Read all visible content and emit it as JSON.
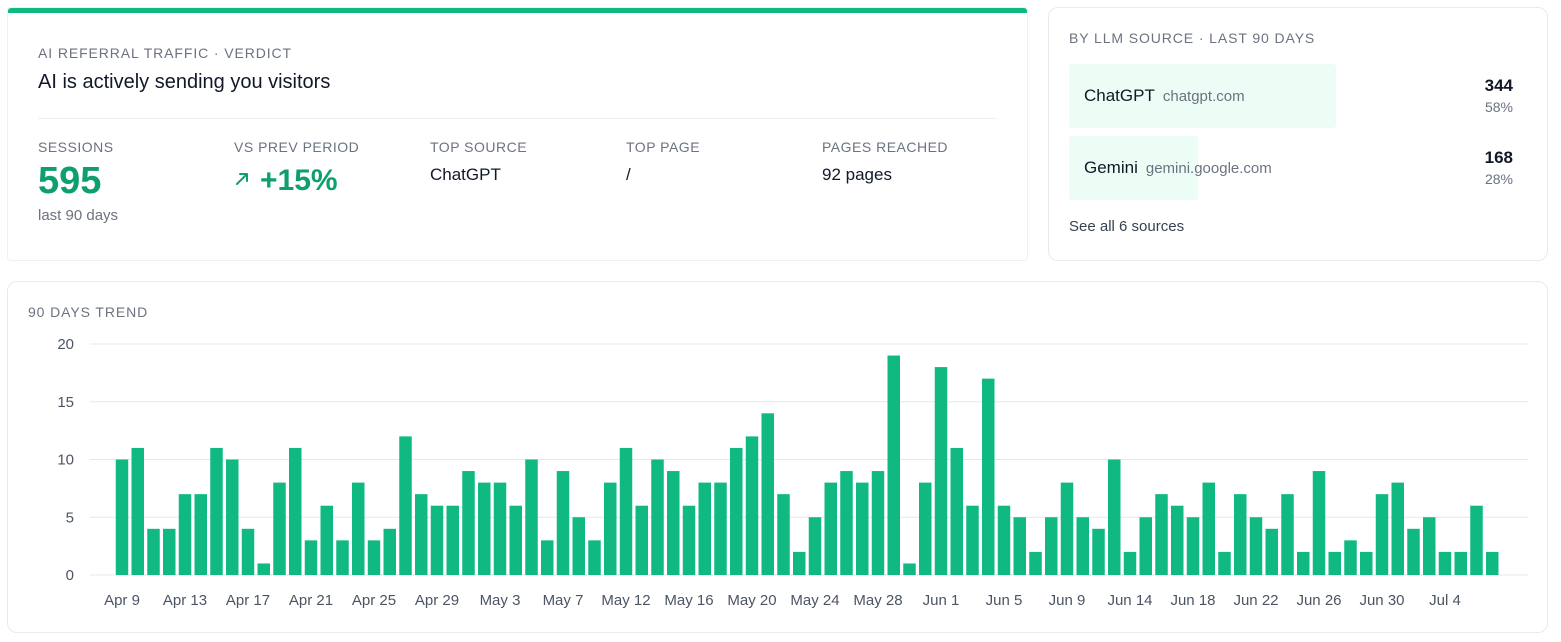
{
  "verdict": {
    "eyebrow": "AI REFERRAL TRAFFIC · VERDICT",
    "headline": "AI is actively sending you visitors",
    "accent_color": "#10b981",
    "stats": {
      "sessions": {
        "label": "SESSIONS",
        "value": "595",
        "sub": "last 90 days"
      },
      "vs_prev": {
        "label": "VS PREV PERIOD",
        "value": "+15%",
        "icon": "arrow-up-right-icon"
      },
      "top_source": {
        "label": "TOP SOURCE",
        "value": "ChatGPT"
      },
      "top_page": {
        "label": "TOP PAGE",
        "value": "/"
      },
      "pages_reached": {
        "label": "PAGES REACHED",
        "value": "92 pages"
      }
    }
  },
  "sources": {
    "eyebrow": "BY LLM SOURCE · LAST 90 DAYS",
    "items": [
      {
        "name": "ChatGPT",
        "domain": "chatgpt.com",
        "count": "344",
        "pct": "58%",
        "share": 0.58
      },
      {
        "name": "Gemini",
        "domain": "gemini.google.com",
        "count": "168",
        "pct": "28%",
        "share": 0.28
      }
    ],
    "see_all": "See all 6 sources",
    "fill_color": "#ecfdf5"
  },
  "trend": {
    "eyebrow": "90 DAYS TREND",
    "chart_data": {
      "type": "bar",
      "start_label": "Apr 9",
      "x_tick_labels": [
        "Apr 9",
        "Apr 13",
        "Apr 17",
        "Apr 21",
        "Apr 25",
        "Apr 29",
        "May 3",
        "May 7",
        "May 12",
        "May 16",
        "May 20",
        "May 24",
        "May 28",
        "Jun 1",
        "Jun 5",
        "Jun 9",
        "Jun 14",
        "Jun 18",
        "Jun 22",
        "Jun 26",
        "Jun 30",
        "Jul 4"
      ],
      "x_tick_days": [
        0,
        4,
        8,
        12,
        16,
        20,
        24,
        28,
        32,
        36,
        40,
        44,
        48,
        52,
        56,
        60,
        64,
        68,
        72,
        76,
        80,
        84
      ],
      "values": [
        10,
        11,
        4,
        4,
        7,
        7,
        11,
        10,
        4,
        1,
        8,
        11,
        3,
        6,
        3,
        8,
        3,
        4,
        12,
        7,
        6,
        6,
        9,
        8,
        8,
        6,
        10,
        3,
        9,
        5,
        3,
        8,
        11,
        6,
        10,
        9,
        6,
        8,
        8,
        11,
        12,
        14,
        7,
        2,
        5,
        8,
        9,
        8,
        9,
        19,
        1,
        8,
        18,
        11,
        6,
        17,
        6,
        5,
        2,
        5,
        8,
        5,
        4,
        10,
        2,
        5,
        7,
        6,
        5,
        8,
        2,
        7,
        5,
        4,
        7,
        2,
        9,
        2,
        3,
        2,
        7,
        8,
        4,
        5,
        2,
        2,
        6,
        2
      ],
      "y_ticks": [
        0,
        5,
        10,
        15,
        20
      ],
      "ylim": [
        0,
        20
      ],
      "grid": true,
      "bar_color": "#10b981"
    }
  }
}
